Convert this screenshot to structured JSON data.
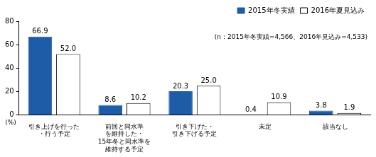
{
  "chart_data": {
    "type": "bar",
    "categories": [
      [
        "引き上げを行った",
        "・行う予定"
      ],
      [
        "前回と同水準",
        "を維持した・",
        "15年冬と同水準を",
        "維持する予定"
      ],
      [
        "引き下げた・",
        "引き下げる予定"
      ],
      [
        "未定"
      ],
      [
        "該当なし"
      ]
    ],
    "series": [
      {
        "name": "2015年冬実績",
        "color": "#1f5ca8",
        "values": [
          66.9,
          8.6,
          20.3,
          0.4,
          3.8
        ]
      },
      {
        "name": "2016年夏見込み",
        "color": "#ffffff",
        "values": [
          52.0,
          10.2,
          25.0,
          10.9,
          1.9
        ],
        "value_labels": [
          "52.0",
          "10.2",
          "25.0",
          "10.9",
          "1.9"
        ]
      }
    ],
    "y_label": "(%)",
    "annotation": "(n：2015年冬実績=4,566、2016年見込み=4,533)",
    "ylim": [
      0,
      80
    ],
    "yticks": [
      0,
      20,
      40,
      60,
      80
    ],
    "grid": false,
    "legend": "top-right",
    "data_labels": true
  }
}
